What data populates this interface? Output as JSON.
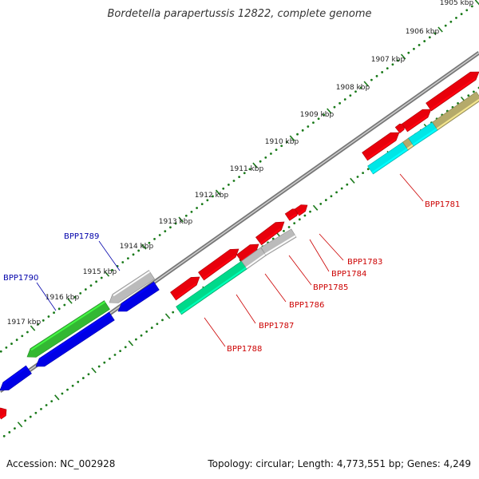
{
  "title": "Bordetella parapertussis 12822, complete genome",
  "footer": {
    "accession": "Accession: NC_002928",
    "summary": "Topology: circular; Length: 4,773,551 bp; Genes: 4,249"
  },
  "colors": {
    "forward_cds": "#e8000b",
    "reverse_cds": "#0000e6",
    "rna_green": "#33b833",
    "grey": "#bbbbbb",
    "cyan": "#00e6e6",
    "teal": "#00d98a",
    "olive": "#b5aa6a",
    "backbone": "#888888",
    "tick": "#1a7a1a",
    "forward_label": "#cc0000",
    "reverse_label": "#0000aa"
  },
  "ruler": {
    "ticks": [
      {
        "label": "1905 kbp"
      },
      {
        "label": "1906 kbp"
      },
      {
        "label": "1907 kbp"
      },
      {
        "label": "1908 kbp"
      },
      {
        "label": "1909 kbp"
      },
      {
        "label": "1910 kbp"
      },
      {
        "label": "1911 kbp"
      },
      {
        "label": "1912 kbp"
      },
      {
        "label": "1913 kbp"
      },
      {
        "label": "1914 kbp"
      },
      {
        "label": "1915 kbp"
      },
      {
        "label": "1916 kbp"
      },
      {
        "label": "1917 kbp"
      }
    ]
  },
  "gene_labels": {
    "forward": [
      "BPP1781",
      "BPP1783",
      "BPP1784",
      "BPP1785",
      "BPP1786",
      "BPP1787",
      "BPP1788"
    ],
    "reverse": [
      "BPP1789",
      "BPP1790"
    ]
  }
}
